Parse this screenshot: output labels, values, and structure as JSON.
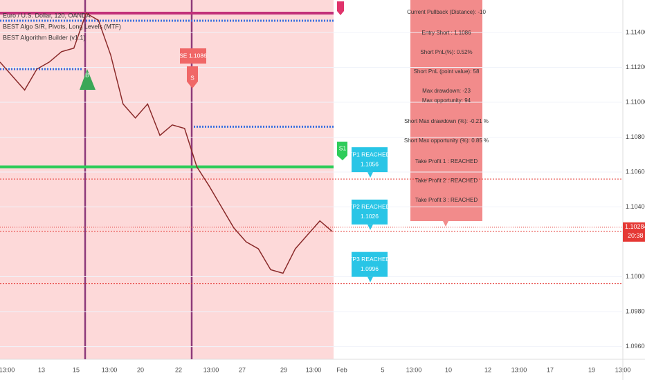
{
  "header": [
    "Euro / U.S. Dollar, 120, OANDA",
    "BEST Algo S/R, Pivots, Long Levels (MTF)",
    "BEST Algorithm Builder (v1.1)"
  ],
  "price_axis": {
    "ylim": [
      1.09527,
      1.11586
    ],
    "ticks": [
      {
        "value": 1.114,
        "label": "1.11400"
      },
      {
        "value": 1.112,
        "label": "1.11200"
      },
      {
        "value": 1.11,
        "label": "1.11000"
      },
      {
        "value": 1.108,
        "label": "1.10800"
      },
      {
        "value": 1.106,
        "label": "1.10600"
      },
      {
        "value": 1.104,
        "label": "1.10400"
      },
      {
        "value": 1.1,
        "label": "1.10000"
      },
      {
        "value": 1.098,
        "label": "1.09800"
      },
      {
        "value": 1.096,
        "label": "1.09600"
      }
    ],
    "current": {
      "value": 1.10284,
      "label": "1.10284",
      "timer": "20:38"
    }
  },
  "time_axis": [
    "13:00",
    "13",
    "15",
    "13:00",
    "20",
    "22",
    "13:00",
    "27",
    "29",
    "13:00",
    "Feb",
    "5",
    "13:00",
    "10",
    "12",
    "13:00",
    "17",
    "19",
    "13:00"
  ],
  "price": {
    "values": [
      1.1123,
      1.1115,
      1.1107,
      1.1119,
      1.1123,
      1.1129,
      1.1131,
      1.1151,
      1.1147,
      1.1127,
      1.1099,
      1.1091,
      1.1099,
      1.1081,
      1.1087,
      1.1085,
      1.1063,
      1.1052,
      1.104,
      1.1028,
      1.102,
      1.1016,
      1.1004,
      1.1002,
      1.1016,
      1.1024,
      1.1032,
      1.1026
    ]
  },
  "levels": {
    "entry": 1.1086,
    "s1": 1.1063,
    "tp1": 1.1056,
    "tp2": 1.1026,
    "tp3": 1.0996
  },
  "signals": {
    "buy": "B",
    "sell": "S",
    "entry_label": "SE 1.1086",
    "s1": "S1"
  },
  "targets": [
    {
      "title": "TP1 REACHED",
      "price": "1.1056"
    },
    {
      "title": "TP2 REACHED",
      "price": "1.1026"
    },
    {
      "title": "TP3 REACHED",
      "price": "1.0996"
    }
  ],
  "info": [
    "Current Pullback (Distance): -10",
    "Entry Short : 1.1086",
    "Short PnL(%): 0.52%",
    "Short PnL (point value): 58",
    "Max drawdown: -23",
    "Max opportunity: 94",
    "Short Max drawdown (%): -0.21 %",
    "Short Max opportunity (%): 0.85 %",
    "Take Profit 1 : REACHED",
    "Take Profit 2 : REACHED",
    "Take Profit 3 : REACHED"
  ]
}
